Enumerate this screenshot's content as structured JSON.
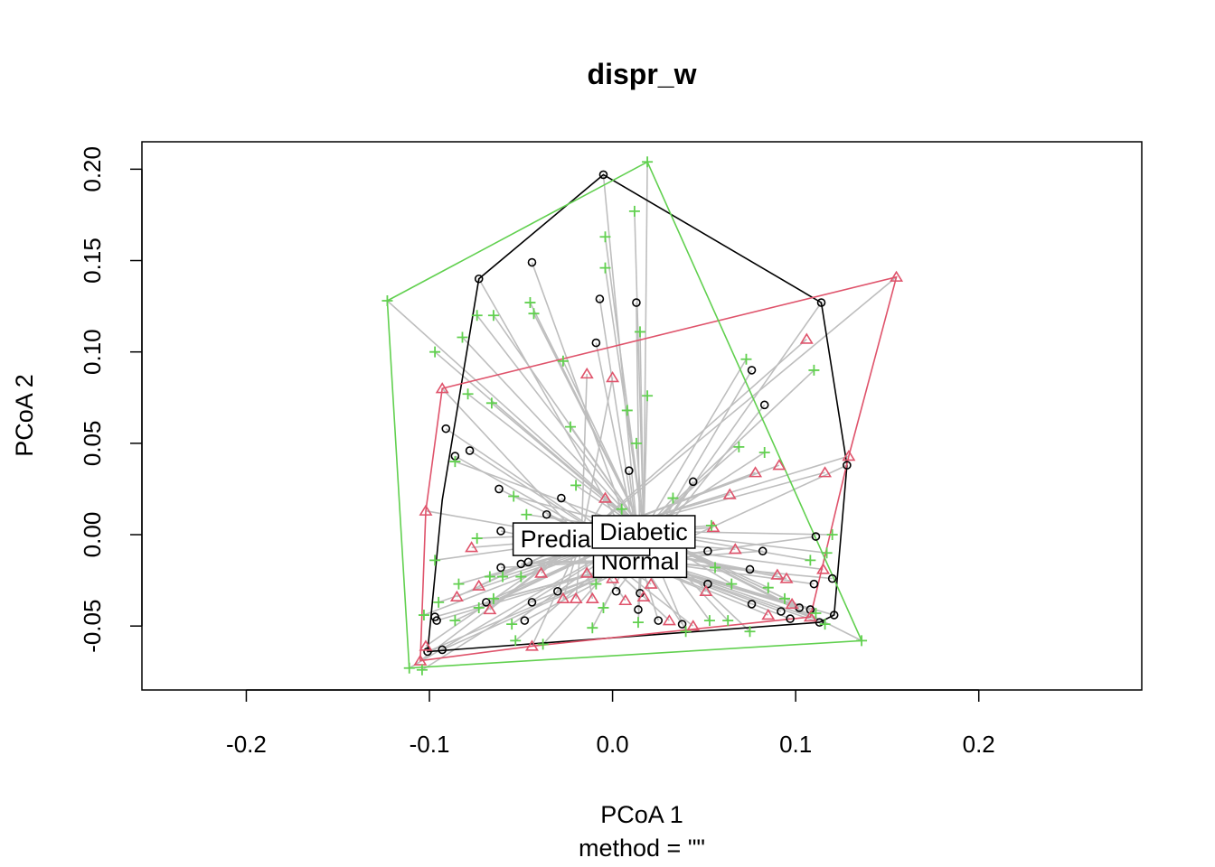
{
  "chart_data": {
    "type": "scatter",
    "title": "dispr_w",
    "xlabel": "PCoA 1",
    "sublabel": "method = \"\"",
    "ylabel": "PCoA 2",
    "xlim": [
      -0.257,
      0.289
    ],
    "ylim": [
      -0.085,
      0.215
    ],
    "x_ticks": [
      -0.2,
      -0.1,
      0.0,
      0.1,
      0.2
    ],
    "x_tick_labels": [
      "-0.2",
      "-0.1",
      "0.0",
      "0.1",
      "0.2"
    ],
    "y_ticks": [
      -0.05,
      0.0,
      0.05,
      0.1,
      0.15,
      0.2
    ],
    "y_tick_labels": [
      "-0.05",
      "0.00",
      "0.05",
      "0.10",
      "0.15",
      "0.20"
    ],
    "grid": false,
    "legend": "none",
    "colors": {
      "spider": "#BEBEBE",
      "frame": "#000000"
    },
    "series": [
      {
        "name": "Normal",
        "color": "#000000",
        "marker": "circle",
        "centroid": [
          0.015,
          -0.014
        ],
        "hull": [
          [
            -0.005,
            0.197
          ],
          [
            0.114,
            0.127
          ],
          [
            0.128,
            0.038
          ],
          [
            0.121,
            -0.044
          ],
          [
            0.113,
            -0.048
          ],
          [
            -0.101,
            -0.064
          ],
          [
            -0.093,
            0.019
          ],
          [
            -0.073,
            0.14
          ]
        ],
        "points": [
          [
            -0.005,
            0.197
          ],
          [
            -0.044,
            0.149
          ],
          [
            -0.073,
            0.14
          ],
          [
            -0.007,
            0.129
          ],
          [
            0.013,
            0.127
          ],
          [
            0.114,
            0.127
          ],
          [
            -0.009,
            0.105
          ],
          [
            0.076,
            0.09
          ],
          [
            0.083,
            0.071
          ],
          [
            -0.091,
            0.058
          ],
          [
            -0.086,
            0.043
          ],
          [
            -0.078,
            0.046
          ],
          [
            0.128,
            0.038
          ],
          [
            0.009,
            0.035
          ],
          [
            0.044,
            0.029
          ],
          [
            -0.062,
            0.025
          ],
          [
            -0.028,
            0.02
          ],
          [
            -0.036,
            0.011
          ],
          [
            -0.061,
            0.002
          ],
          [
            0.111,
            -0.001
          ],
          [
            -0.046,
            -0.015
          ],
          [
            0.052,
            -0.009
          ],
          [
            0.082,
            -0.009
          ],
          [
            -0.05,
            -0.016
          ],
          [
            -0.061,
            -0.018
          ],
          [
            0.075,
            -0.019
          ],
          [
            0.12,
            -0.024
          ],
          [
            -0.03,
            -0.031
          ],
          [
            0.11,
            -0.027
          ],
          [
            0.052,
            -0.027
          ],
          [
            0.076,
            -0.038
          ],
          [
            0.002,
            -0.031
          ],
          [
            0.015,
            -0.032
          ],
          [
            -0.069,
            -0.037
          ],
          [
            -0.044,
            -0.037
          ],
          [
            -0.097,
            -0.045
          ],
          [
            0.014,
            -0.041
          ],
          [
            0.092,
            -0.042
          ],
          [
            0.102,
            -0.04
          ],
          [
            0.108,
            -0.041
          ],
          [
            0.121,
            -0.044
          ],
          [
            -0.096,
            -0.047
          ],
          [
            -0.048,
            -0.047
          ],
          [
            0.025,
            -0.047
          ],
          [
            0.038,
            -0.049
          ],
          [
            0.097,
            -0.046
          ],
          [
            0.113,
            -0.048
          ],
          [
            -0.093,
            -0.063
          ],
          [
            -0.101,
            -0.064
          ]
        ]
      },
      {
        "name": "Prediabetic",
        "color": "#DF536B",
        "marker": "triangle",
        "centroid": [
          -0.017,
          -0.002
        ],
        "hull": [
          [
            0.155,
            0.141
          ],
          [
            0.129,
            0.043
          ],
          [
            0.108,
            -0.045
          ],
          [
            -0.044,
            -0.061
          ],
          [
            -0.105,
            -0.069
          ],
          [
            -0.102,
            0.013
          ],
          [
            -0.093,
            0.08
          ]
        ],
        "points": [
          [
            0.155,
            0.141
          ],
          [
            0.106,
            0.107
          ],
          [
            -0.014,
            0.088
          ],
          [
            0.0,
            0.086
          ],
          [
            -0.093,
            0.08
          ],
          [
            0.129,
            0.043
          ],
          [
            0.091,
            0.038
          ],
          [
            0.116,
            0.034
          ],
          [
            0.078,
            0.034
          ],
          [
            0.064,
            0.022
          ],
          [
            -0.004,
            0.02
          ],
          [
            0.055,
            0.004
          ],
          [
            -0.102,
            0.013
          ],
          [
            -0.077,
            -0.007
          ],
          [
            0.067,
            -0.008
          ],
          [
            0.09,
            -0.022
          ],
          [
            0.115,
            -0.019
          ],
          [
            -0.073,
            -0.028
          ],
          [
            -0.039,
            -0.021
          ],
          [
            -0.014,
            -0.021
          ],
          [
            0.095,
            -0.024
          ],
          [
            0.0,
            -0.024
          ],
          [
            0.051,
            -0.031
          ],
          [
            0.021,
            -0.027
          ],
          [
            -0.085,
            -0.034
          ],
          [
            0.017,
            -0.034
          ],
          [
            -0.027,
            -0.035
          ],
          [
            -0.011,
            -0.035
          ],
          [
            -0.02,
            -0.035
          ],
          [
            0.007,
            -0.036
          ],
          [
            0.098,
            -0.038
          ],
          [
            -0.067,
            -0.041
          ],
          [
            0.085,
            -0.044
          ],
          [
            0.031,
            -0.047
          ],
          [
            0.044,
            -0.05
          ],
          [
            -0.044,
            -0.061
          ],
          [
            -0.102,
            -0.061
          ],
          [
            -0.105,
            -0.069
          ],
          [
            0.108,
            -0.045
          ]
        ]
      },
      {
        "name": "Diabetic",
        "color": "#61D04F",
        "marker": "plus",
        "centroid": [
          0.017,
          0.002
        ],
        "hull": [
          [
            0.019,
            0.204
          ],
          [
            0.136,
            -0.058
          ],
          [
            -0.111,
            -0.073
          ],
          [
            -0.123,
            0.128
          ]
        ],
        "points": [
          [
            0.019,
            0.204
          ],
          [
            0.012,
            0.177
          ],
          [
            -0.004,
            0.163
          ],
          [
            -0.004,
            0.146
          ],
          [
            -0.123,
            0.128
          ],
          [
            -0.045,
            0.127
          ],
          [
            -0.043,
            0.121
          ],
          [
            -0.074,
            0.12
          ],
          [
            -0.065,
            0.12
          ],
          [
            0.015,
            0.111
          ],
          [
            -0.082,
            0.108
          ],
          [
            -0.097,
            0.1
          ],
          [
            0.073,
            0.096
          ],
          [
            -0.027,
            0.095
          ],
          [
            0.11,
            0.09
          ],
          [
            -0.079,
            0.077
          ],
          [
            0.019,
            0.076
          ],
          [
            -0.066,
            0.072
          ],
          [
            0.008,
            0.068
          ],
          [
            -0.023,
            0.059
          ],
          [
            0.013,
            0.05
          ],
          [
            0.069,
            0.048
          ],
          [
            0.083,
            0.045
          ],
          [
            -0.086,
            0.04
          ],
          [
            -0.02,
            0.027
          ],
          [
            -0.054,
            0.021
          ],
          [
            0.033,
            0.02
          ],
          [
            0.005,
            0.014
          ],
          [
            -0.047,
            0.011
          ],
          [
            0.054,
            0.005
          ],
          [
            0.12,
            0.0
          ],
          [
            0.01,
            0.0
          ],
          [
            -0.074,
            -0.002
          ],
          [
            0.117,
            -0.01
          ],
          [
            0.108,
            -0.014
          ],
          [
            -0.097,
            -0.014
          ],
          [
            0.056,
            -0.018
          ],
          [
            -0.067,
            -0.023
          ],
          [
            -0.06,
            -0.023
          ],
          [
            -0.05,
            -0.023
          ],
          [
            -0.084,
            -0.027
          ],
          [
            -0.009,
            -0.027
          ],
          [
            0.065,
            -0.027
          ],
          [
            0.085,
            -0.029
          ],
          [
            0.094,
            -0.035
          ],
          [
            -0.065,
            -0.035
          ],
          [
            -0.095,
            -0.037
          ],
          [
            -0.073,
            -0.04
          ],
          [
            -0.005,
            -0.04
          ],
          [
            -0.086,
            -0.047
          ],
          [
            0.063,
            -0.047
          ],
          [
            0.111,
            -0.043
          ],
          [
            -0.055,
            -0.049
          ],
          [
            0.014,
            -0.048
          ],
          [
            -0.103,
            -0.044
          ],
          [
            -0.011,
            -0.051
          ],
          [
            0.04,
            -0.053
          ],
          [
            0.053,
            -0.047
          ],
          [
            0.116,
            -0.049
          ],
          [
            0.075,
            -0.053
          ],
          [
            -0.053,
            -0.058
          ],
          [
            0.136,
            -0.058
          ],
          [
            -0.038,
            -0.06
          ],
          [
            -0.111,
            -0.073
          ],
          [
            -0.104,
            -0.074
          ]
        ]
      }
    ]
  }
}
